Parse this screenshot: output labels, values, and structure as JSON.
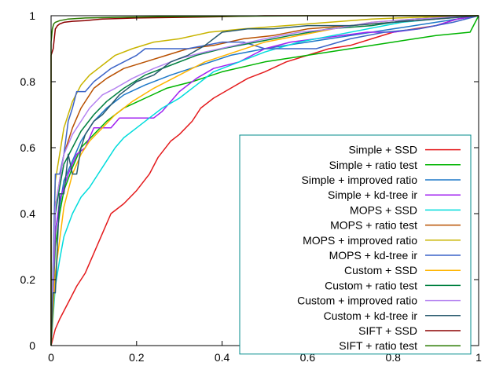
{
  "chart_data": {
    "type": "line",
    "title": "",
    "xlabel": "",
    "ylabel": "",
    "xlim": [
      0,
      1
    ],
    "ylim": [
      0,
      1
    ],
    "x_ticks": [
      "0",
      "0.2",
      "0.4",
      "0.6",
      "0.8",
      "1"
    ],
    "y_ticks": [
      "0",
      "0.2",
      "0.4",
      "0.6",
      "0.8",
      "1"
    ],
    "grid": false,
    "legend_position": "bottom-right",
    "series": [
      {
        "name": "Simple + SSD",
        "color": "#e41a1c",
        "x": [
          0.0,
          0.01,
          0.02,
          0.04,
          0.06,
          0.08,
          0.1,
          0.12,
          0.14,
          0.17,
          0.2,
          0.23,
          0.25,
          0.28,
          0.3,
          0.33,
          0.35,
          0.38,
          0.42,
          0.46,
          0.5,
          0.55,
          0.6,
          0.65,
          0.7,
          0.75,
          0.8,
          0.85,
          0.9,
          0.95,
          1.0
        ],
        "y": [
          0.0,
          0.05,
          0.08,
          0.13,
          0.18,
          0.22,
          0.28,
          0.34,
          0.4,
          0.43,
          0.47,
          0.52,
          0.57,
          0.62,
          0.64,
          0.68,
          0.72,
          0.75,
          0.78,
          0.81,
          0.83,
          0.86,
          0.88,
          0.9,
          0.91,
          0.93,
          0.95,
          0.96,
          0.97,
          0.99,
          1.0
        ]
      },
      {
        "name": "Simple + ratio test",
        "color": "#00b400",
        "x": [
          0.0,
          0.01,
          0.02,
          0.03,
          0.05,
          0.07,
          0.1,
          0.13,
          0.17,
          0.22,
          0.27,
          0.33,
          0.4,
          0.5,
          0.6,
          0.7,
          0.8,
          0.9,
          0.98,
          1.0
        ],
        "y": [
          0.0,
          0.3,
          0.4,
          0.47,
          0.54,
          0.6,
          0.64,
          0.68,
          0.72,
          0.75,
          0.78,
          0.8,
          0.83,
          0.86,
          0.88,
          0.9,
          0.92,
          0.94,
          0.95,
          1.0
        ]
      },
      {
        "name": "Simple + improved ratio",
        "color": "#1e78c8",
        "x": [
          0.0,
          0.01,
          0.02,
          0.03,
          0.05,
          0.07,
          0.1,
          0.13,
          0.17,
          0.22,
          0.28,
          0.35,
          0.42,
          0.5,
          0.6,
          0.7,
          0.8,
          0.9,
          1.0
        ],
        "y": [
          0.0,
          0.35,
          0.42,
          0.5,
          0.56,
          0.62,
          0.68,
          0.72,
          0.76,
          0.79,
          0.82,
          0.85,
          0.88,
          0.9,
          0.92,
          0.94,
          0.96,
          0.98,
          1.0
        ]
      },
      {
        "name": "Simple + kd-tree ir",
        "color": "#a020f0",
        "x": [
          0.0,
          0.01,
          0.02,
          0.04,
          0.06,
          0.08,
          0.1,
          0.12,
          0.14,
          0.16,
          0.18,
          0.2,
          0.22,
          0.24,
          0.26,
          0.3,
          0.34,
          0.38,
          0.44,
          0.5,
          0.56,
          0.62,
          0.68,
          0.74,
          0.8,
          0.86,
          0.9,
          0.95,
          1.0
        ],
        "y": [
          0.0,
          0.34,
          0.44,
          0.52,
          0.58,
          0.6,
          0.66,
          0.66,
          0.66,
          0.69,
          0.69,
          0.69,
          0.69,
          0.69,
          0.71,
          0.77,
          0.81,
          0.84,
          0.86,
          0.9,
          0.92,
          0.93,
          0.94,
          0.95,
          0.95,
          0.96,
          0.97,
          0.99,
          1.0
        ]
      },
      {
        "name": "MOPS + SSD",
        "color": "#00dcdc",
        "x": [
          0.0,
          0.01,
          0.02,
          0.03,
          0.05,
          0.07,
          0.09,
          0.11,
          0.13,
          0.15,
          0.17,
          0.2,
          0.23,
          0.26,
          0.3,
          0.34,
          0.38,
          0.44,
          0.5,
          0.58,
          0.66,
          0.74,
          0.82,
          0.9,
          1.0
        ],
        "y": [
          0.0,
          0.18,
          0.26,
          0.33,
          0.4,
          0.45,
          0.48,
          0.52,
          0.56,
          0.6,
          0.63,
          0.66,
          0.69,
          0.72,
          0.75,
          0.79,
          0.83,
          0.86,
          0.89,
          0.92,
          0.94,
          0.96,
          0.98,
          0.99,
          1.0
        ]
      },
      {
        "name": "MOPS + ratio test",
        "color": "#b85000",
        "x": [
          0.0,
          0.01,
          0.02,
          0.03,
          0.05,
          0.07,
          0.1,
          0.13,
          0.17,
          0.22,
          0.27,
          0.32,
          0.38,
          0.45,
          0.52,
          0.6,
          0.7,
          0.8,
          0.9,
          1.0
        ],
        "y": [
          0.0,
          0.42,
          0.5,
          0.58,
          0.66,
          0.72,
          0.78,
          0.81,
          0.84,
          0.86,
          0.88,
          0.9,
          0.91,
          0.93,
          0.94,
          0.96,
          0.97,
          0.98,
          0.99,
          1.0
        ]
      },
      {
        "name": "MOPS + improved ratio",
        "color": "#c8b400",
        "x": [
          0.0,
          0.01,
          0.02,
          0.03,
          0.05,
          0.07,
          0.09,
          0.12,
          0.15,
          0.19,
          0.24,
          0.3,
          0.37,
          0.45,
          0.55,
          0.65,
          0.75,
          0.85,
          1.0
        ],
        "y": [
          0.0,
          0.5,
          0.58,
          0.66,
          0.74,
          0.79,
          0.82,
          0.85,
          0.88,
          0.9,
          0.92,
          0.93,
          0.95,
          0.96,
          0.97,
          0.98,
          0.99,
          0.995,
          1.0
        ]
      },
      {
        "name": "MOPS + kd-tree ir",
        "color": "#3c64c8",
        "x": [
          0.0,
          0.01,
          0.01,
          0.02,
          0.03,
          0.04,
          0.05,
          0.06,
          0.08,
          0.1,
          0.12,
          0.14,
          0.17,
          0.2,
          0.22,
          0.22,
          0.25,
          0.28,
          0.32,
          0.36,
          0.4,
          0.45,
          0.5,
          0.56,
          0.62,
          0.7,
          0.78,
          0.86,
          0.94,
          1.0
        ],
        "y": [
          0.0,
          0.52,
          0.52,
          0.52,
          0.58,
          0.68,
          0.72,
          0.77,
          0.77,
          0.8,
          0.82,
          0.84,
          0.86,
          0.88,
          0.9,
          0.9,
          0.9,
          0.9,
          0.9,
          0.91,
          0.92,
          0.92,
          0.9,
          0.9,
          0.9,
          0.93,
          0.95,
          0.96,
          0.98,
          1.0
        ]
      },
      {
        "name": "Custom + SSD",
        "color": "#ffb400",
        "x": [
          0.0,
          0.01,
          0.02,
          0.03,
          0.05,
          0.07,
          0.09,
          0.12,
          0.15,
          0.19,
          0.24,
          0.3,
          0.36,
          0.43,
          0.5,
          0.58,
          0.66,
          0.75,
          0.85,
          1.0
        ],
        "y": [
          0.0,
          0.22,
          0.32,
          0.42,
          0.52,
          0.58,
          0.62,
          0.66,
          0.7,
          0.74,
          0.78,
          0.82,
          0.86,
          0.89,
          0.92,
          0.94,
          0.96,
          0.98,
          0.99,
          1.0
        ]
      },
      {
        "name": "Custom + ratio test",
        "color": "#008040",
        "x": [
          0.0,
          0.01,
          0.02,
          0.03,
          0.05,
          0.07,
          0.1,
          0.13,
          0.17,
          0.22,
          0.28,
          0.34,
          0.4,
          0.48,
          0.56,
          0.65,
          0.75,
          0.85,
          1.0
        ],
        "y": [
          0.0,
          0.4,
          0.48,
          0.55,
          0.6,
          0.65,
          0.7,
          0.74,
          0.78,
          0.82,
          0.85,
          0.88,
          0.9,
          0.92,
          0.94,
          0.96,
          0.97,
          0.99,
          1.0
        ]
      },
      {
        "name": "Custom + improved ratio",
        "color": "#b482f0",
        "x": [
          0.0,
          0.01,
          0.02,
          0.03,
          0.05,
          0.07,
          0.09,
          0.12,
          0.15,
          0.19,
          0.24,
          0.3,
          0.36,
          0.43,
          0.5,
          0.58,
          0.66,
          0.75,
          0.85,
          1.0
        ],
        "y": [
          0.0,
          0.42,
          0.5,
          0.58,
          0.64,
          0.68,
          0.72,
          0.76,
          0.78,
          0.81,
          0.84,
          0.87,
          0.89,
          0.91,
          0.93,
          0.95,
          0.96,
          0.98,
          0.99,
          1.0
        ]
      },
      {
        "name": "Custom + kd-tree ir",
        "color": "#285a6e",
        "x": [
          0.0,
          0.005,
          0.01,
          0.02,
          0.03,
          0.04,
          0.05,
          0.06,
          0.07,
          0.08,
          0.1,
          0.12,
          0.14,
          0.16,
          0.18,
          0.2,
          0.24,
          0.28,
          0.32,
          0.36,
          0.4,
          0.46,
          0.52,
          0.6,
          0.7,
          0.8,
          0.9,
          1.0
        ],
        "y": [
          0.0,
          0.16,
          0.16,
          0.46,
          0.46,
          0.58,
          0.52,
          0.52,
          0.6,
          0.64,
          0.68,
          0.7,
          0.73,
          0.76,
          0.78,
          0.8,
          0.82,
          0.86,
          0.88,
          0.91,
          0.95,
          0.96,
          0.96,
          0.97,
          0.97,
          0.98,
          0.99,
          1.0
        ]
      },
      {
        "name": "SIFT + SSD",
        "color": "#8b0000",
        "x": [
          0.0,
          0.0,
          0.005,
          0.01,
          0.015,
          0.02,
          0.03,
          0.05,
          0.08,
          0.12,
          0.2,
          0.3,
          0.4,
          0.5,
          0.7,
          1.0
        ],
        "y": [
          0.0,
          0.88,
          0.9,
          0.96,
          0.97,
          0.975,
          0.98,
          0.983,
          0.985,
          0.99,
          0.993,
          0.995,
          0.997,
          1.0,
          1.0,
          1.0
        ]
      },
      {
        "name": "SIFT + ratio test",
        "color": "#2a7a00",
        "x": [
          0.0,
          0.0,
          0.003,
          0.006,
          0.01,
          0.02,
          0.04,
          0.08,
          0.15,
          0.25,
          0.4,
          0.6,
          0.8,
          1.0
        ],
        "y": [
          0.0,
          0.92,
          0.96,
          0.975,
          0.98,
          0.985,
          0.99,
          0.993,
          0.995,
          0.997,
          0.998,
          1.0,
          1.0,
          1.0
        ]
      }
    ]
  }
}
